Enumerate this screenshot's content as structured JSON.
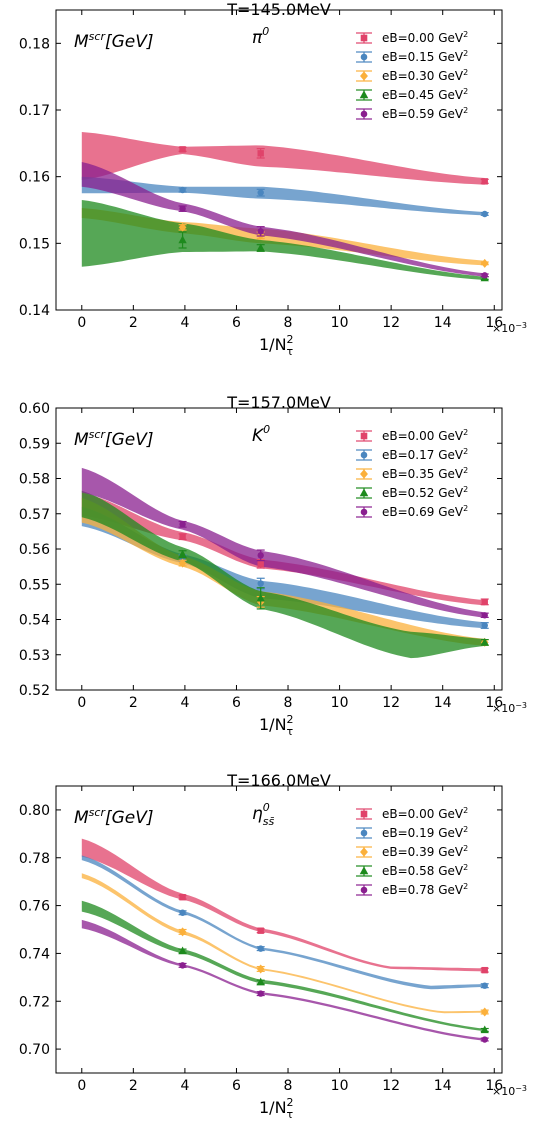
{
  "chart_data": [
    {
      "type": "line",
      "title": "T=145.0MeV",
      "ylabel_text": "M",
      "ylabel_sup": "scr",
      "ylabel_unit": "[GeV]",
      "particle": "π",
      "particle_sup": "0",
      "particle_sub": "",
      "xlabel": "1/N",
      "xlabel_sup": "2",
      "xlabel_sub": "τ",
      "x_multiplier_base": "×10",
      "x_multiplier_exp": "−3",
      "xlim": [
        -1.0,
        16.3
      ],
      "ylim": [
        0.14,
        0.185
      ],
      "xticks": [
        0,
        2,
        4,
        6,
        8,
        10,
        12,
        14,
        16
      ],
      "yticks": [
        0.14,
        0.15,
        0.16,
        0.17,
        0.18
      ],
      "ytick_labels": [
        "0.14",
        "0.15",
        "0.16",
        "0.17",
        "0.18"
      ],
      "legend_position": "top-right",
      "series": [
        {
          "name": "eB=0.00 GeV",
          "name_sup": "2",
          "color": "#e0436a",
          "marker": "square",
          "x": [
            3.91,
            6.94,
            15.63
          ],
          "y": [
            0.1641,
            0.1635,
            0.1593
          ],
          "err": [
            0.0003,
            0.0007,
            0.0003
          ],
          "band_x": [
            0,
            3.91,
            6.94,
            15.63
          ],
          "band_low": [
            0.1595,
            0.1634,
            0.1615,
            0.1588
          ],
          "band_high": [
            0.1667,
            0.1645,
            0.1647,
            0.1598
          ]
        },
        {
          "name": "eB=0.15 GeV",
          "name_sup": "2",
          "color": "#4a86bf",
          "marker": "circle",
          "x": [
            3.91,
            6.94,
            15.63
          ],
          "y": [
            0.158,
            0.1576,
            0.1544
          ],
          "err": [
            0.0003,
            0.0005,
            0.0002
          ],
          "band_x": [
            0,
            3.91,
            6.94,
            15.63
          ],
          "band_low": [
            0.1575,
            0.1576,
            0.1567,
            0.1542
          ],
          "band_high": [
            0.16,
            0.1585,
            0.1585,
            0.1547
          ]
        },
        {
          "name": "eB=0.30 GeV",
          "name_sup": "2",
          "color": "#fbb03b",
          "marker": "diamond",
          "x": [
            3.91,
            6.94,
            15.63
          ],
          "y": [
            0.1524,
            0.1512,
            0.147
          ],
          "err": [
            0.0004,
            0.0005,
            0.0002
          ],
          "band_x": [
            0,
            3.91,
            6.94,
            15.63
          ],
          "band_low": [
            0.1538,
            0.1515,
            0.15,
            0.1467
          ],
          "band_high": [
            0.1553,
            0.1532,
            0.1522,
            0.1474
          ]
        },
        {
          "name": "eB=0.45 GeV",
          "name_sup": "2",
          "color": "#1d8a1d",
          "marker": "triangle",
          "x": [
            3.91,
            6.94,
            15.63
          ],
          "y": [
            0.1505,
            0.1493,
            0.1448
          ],
          "err": [
            0.0012,
            0.0005,
            0.0002
          ],
          "band_x": [
            0,
            3.91,
            6.94,
            15.63
          ],
          "band_low": [
            0.1465,
            0.1487,
            0.1488,
            0.1445
          ],
          "band_high": [
            0.1565,
            0.153,
            0.1505,
            0.145
          ]
        },
        {
          "name": "eB=0.59 GeV",
          "name_sup": "2",
          "color": "#8a1f8f",
          "marker": "circle",
          "x": [
            3.91,
            6.94,
            15.63
          ],
          "y": [
            0.1552,
            0.1518,
            0.1452
          ],
          "err": [
            0.0004,
            0.0007,
            0.0002
          ],
          "band_x": [
            0,
            3.91,
            6.94,
            15.63
          ],
          "band_low": [
            0.1585,
            0.1548,
            0.1512,
            0.145
          ],
          "band_high": [
            0.1622,
            0.156,
            0.1525,
            0.1455
          ]
        }
      ]
    },
    {
      "type": "line",
      "title": "T=157.0MeV",
      "ylabel_text": "M",
      "ylabel_sup": "scr",
      "ylabel_unit": "[GeV]",
      "particle": "K",
      "particle_sup": "0",
      "particle_sub": "",
      "xlabel": "1/N",
      "xlabel_sup": "2",
      "xlabel_sub": "τ",
      "x_multiplier_base": "×10",
      "x_multiplier_exp": "−3",
      "xlim": [
        -1.0,
        16.3
      ],
      "ylim": [
        0.52,
        0.6
      ],
      "xticks": [
        0,
        2,
        4,
        6,
        8,
        10,
        12,
        14,
        16
      ],
      "yticks": [
        0.52,
        0.53,
        0.54,
        0.55,
        0.56,
        0.57,
        0.58,
        0.59,
        0.6
      ],
      "ytick_labels": [
        "0.52",
        "0.53",
        "0.54",
        "0.55",
        "0.56",
        "0.57",
        "0.58",
        "0.59",
        "0.60"
      ],
      "legend_position": "top-right",
      "series": [
        {
          "name": "eB=0.00 GeV",
          "name_sup": "2",
          "color": "#e0436a",
          "marker": "square",
          "x": [
            3.91,
            6.94,
            15.63
          ],
          "y": [
            0.5635,
            0.5558,
            0.545
          ],
          "err": [
            0.0008,
            0.0012,
            0.0008
          ],
          "band_x": [
            0,
            3.91,
            6.94,
            15.63
          ],
          "band_low": [
            0.5695,
            0.5625,
            0.5545,
            0.544
          ],
          "band_high": [
            0.576,
            0.5648,
            0.557,
            0.5455
          ]
        },
        {
          "name": "eB=0.17 GeV",
          "name_sup": "2",
          "color": "#4a86bf",
          "marker": "circle",
          "x": [
            3.91,
            6.94,
            15.63
          ],
          "y": [
            0.5575,
            0.5502,
            0.5383
          ],
          "err": [
            0.0008,
            0.0015,
            0.0008
          ],
          "band_x": [
            0,
            3.91,
            6.94,
            15.63
          ],
          "band_low": [
            0.5665,
            0.556,
            0.546,
            0.5375
          ],
          "band_high": [
            0.572,
            0.5585,
            0.551,
            0.5392
          ]
        },
        {
          "name": "eB=0.35 GeV",
          "name_sup": "2",
          "color": "#fbb03b",
          "marker": "diamond",
          "x": [
            3.91,
            6.94,
            15.63
          ],
          "y": [
            0.556,
            0.545,
            0.5335
          ],
          "err": [
            0.0008,
            0.0015,
            0.0008
          ],
          "band_x": [
            0,
            3.91,
            6.94,
            15.63
          ],
          "band_low": [
            0.5675,
            0.555,
            0.544,
            0.5325
          ],
          "band_high": [
            0.5745,
            0.558,
            0.548,
            0.5345
          ]
        },
        {
          "name": "eB=0.52 GeV",
          "name_sup": "2",
          "color": "#1d8a1d",
          "marker": "triangle",
          "x": [
            3.91,
            6.94,
            15.63
          ],
          "y": [
            0.5585,
            0.546,
            0.5335
          ],
          "err": [
            0.001,
            0.003,
            0.0008
          ],
          "band_x": [
            0,
            3.91,
            6.94,
            12.8,
            15.63
          ],
          "band_low": [
            0.569,
            0.5565,
            0.543,
            0.529,
            0.5325
          ],
          "band_high": [
            0.5765,
            0.5605,
            0.548,
            0.5365,
            0.5345
          ]
        },
        {
          "name": "eB=0.69 GeV",
          "name_sup": "2",
          "color": "#8a1f8f",
          "marker": "circle",
          "x": [
            3.91,
            6.94,
            15.63
          ],
          "y": [
            0.567,
            0.5582,
            0.5412
          ],
          "err": [
            0.0008,
            0.0015,
            0.0006
          ],
          "band_x": [
            0,
            3.91,
            6.94,
            15.63
          ],
          "band_low": [
            0.576,
            0.5655,
            0.555,
            0.5405
          ],
          "band_high": [
            0.583,
            0.568,
            0.5595,
            0.542
          ]
        }
      ]
    },
    {
      "type": "line",
      "title": "T=166.0MeV",
      "ylabel_text": "M",
      "ylabel_sup": "scr",
      "ylabel_unit": "[GeV]",
      "particle": "η",
      "particle_sup": "0",
      "particle_sub": "ss̄",
      "xlabel": "1/N",
      "xlabel_sup": "2",
      "xlabel_sub": "τ",
      "x_multiplier_base": "×10",
      "x_multiplier_exp": "−3",
      "xlim": [
        -1.0,
        16.3
      ],
      "ylim": [
        0.69,
        0.81
      ],
      "xticks": [
        0,
        2,
        4,
        6,
        8,
        10,
        12,
        14,
        16
      ],
      "yticks": [
        0.7,
        0.72,
        0.74,
        0.76,
        0.78,
        0.8
      ],
      "ytick_labels": [
        "0.70",
        "0.72",
        "0.74",
        "0.76",
        "0.78",
        "0.80"
      ],
      "legend_position": "top-right",
      "series": [
        {
          "name": "eB=0.00 GeV",
          "name_sup": "2",
          "color": "#e0436a",
          "marker": "square",
          "x": [
            3.91,
            6.94,
            15.63
          ],
          "y": [
            0.7635,
            0.7495,
            0.733
          ],
          "err": [
            0.0008,
            0.0008,
            0.0008
          ],
          "band_x": [
            0,
            3.91,
            6.94,
            12.0,
            15.63
          ],
          "band_low": [
            0.7805,
            0.7625,
            0.749,
            0.7335,
            0.7325
          ],
          "band_high": [
            0.788,
            0.765,
            0.7505,
            0.7345,
            0.7338
          ]
        },
        {
          "name": "eB=0.19 GeV",
          "name_sup": "2",
          "color": "#4a86bf",
          "marker": "circle",
          "x": [
            3.91,
            6.94,
            15.63
          ],
          "y": [
            0.757,
            0.742,
            0.7265
          ],
          "err": [
            0.0008,
            0.0008,
            0.0008
          ],
          "band_x": [
            0,
            3.91,
            6.94,
            13.5,
            15.63
          ],
          "band_low": [
            0.779,
            0.7565,
            0.7415,
            0.725,
            0.726
          ],
          "band_high": [
            0.781,
            0.7578,
            0.7425,
            0.7265,
            0.7272
          ]
        },
        {
          "name": "eB=0.39 GeV",
          "name_sup": "2",
          "color": "#fbb03b",
          "marker": "diamond",
          "x": [
            3.91,
            6.94,
            15.63
          ],
          "y": [
            0.749,
            0.7335,
            0.7155
          ],
          "err": [
            0.001,
            0.001,
            0.0008
          ],
          "band_x": [
            0,
            3.91,
            6.94,
            14.0,
            15.63
          ],
          "band_low": [
            0.7715,
            0.748,
            0.733,
            0.715,
            0.7152
          ],
          "band_high": [
            0.7735,
            0.7495,
            0.7338,
            0.7158,
            0.716
          ]
        },
        {
          "name": "eB=0.58 GeV",
          "name_sup": "2",
          "color": "#1d8a1d",
          "marker": "triangle",
          "x": [
            3.91,
            6.94,
            15.63
          ],
          "y": [
            0.741,
            0.728,
            0.708
          ],
          "err": [
            0.0008,
            0.0008,
            0.0006
          ],
          "band_x": [
            0,
            3.91,
            6.94,
            15.63
          ],
          "band_low": [
            0.7575,
            0.74,
            0.7275,
            0.7075
          ],
          "band_high": [
            0.762,
            0.7418,
            0.729,
            0.7085
          ]
        },
        {
          "name": "eB=0.78 GeV",
          "name_sup": "2",
          "color": "#8a1f8f",
          "marker": "circle",
          "x": [
            3.91,
            6.94,
            15.63
          ],
          "y": [
            0.735,
            0.7232,
            0.704
          ],
          "err": [
            0.0008,
            0.0008,
            0.0006
          ],
          "band_x": [
            0,
            3.91,
            6.94,
            15.63
          ],
          "band_low": [
            0.7505,
            0.7345,
            0.7228,
            0.7035
          ],
          "band_high": [
            0.754,
            0.7355,
            0.7238,
            0.7045
          ]
        }
      ]
    }
  ]
}
